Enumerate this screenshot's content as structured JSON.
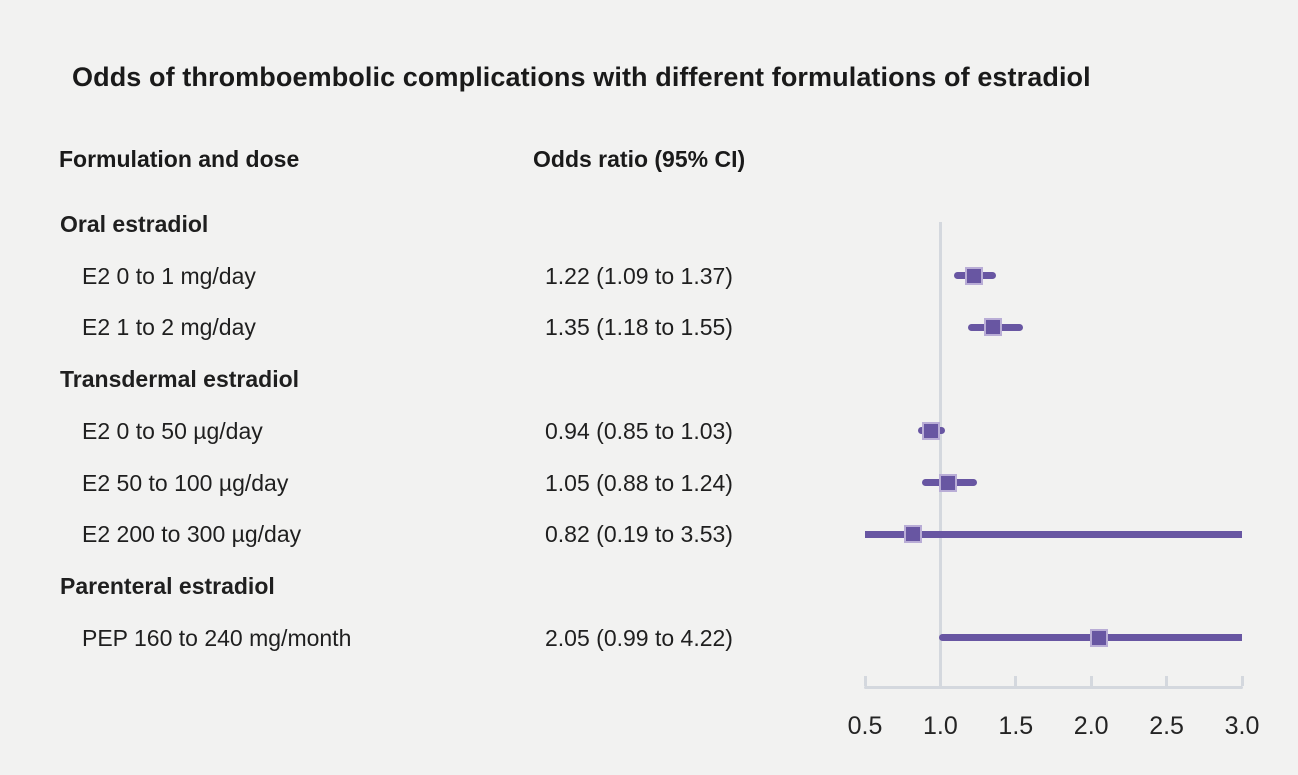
{
  "title": "Odds of thromboembolic complications with different formulations of estradiol",
  "columns": {
    "left": "Formulation and dose",
    "right": "Odds ratio (95% CI)"
  },
  "colors": {
    "background": "#f2f2f1",
    "text": "#1a1a1a",
    "marker": "#6856a2",
    "marker_outline": "#b9add6",
    "axis": "#d4d8de"
  },
  "chart_data": {
    "type": "forest",
    "title": "Odds of thromboembolic complications with different formulations of estradiol",
    "x_axis": {
      "min": 0.5,
      "max": 3.0,
      "reference_line": 1.0,
      "tick_labels": [
        "0.5",
        "1.0",
        "1.5",
        "2.0",
        "2.5",
        "3.0"
      ],
      "grid": false
    },
    "rows": [
      {
        "kind": "group",
        "label": "Oral estradiol"
      },
      {
        "kind": "item",
        "label": "E2 0 to 1 mg/day",
        "or_text": "1.22 (1.09 to 1.37)",
        "est": 1.22,
        "lo": 1.09,
        "hi": 1.37
      },
      {
        "kind": "item",
        "label": "E2 1 to 2 mg/day",
        "or_text": "1.35 (1.18 to 1.55)",
        "est": 1.35,
        "lo": 1.18,
        "hi": 1.55
      },
      {
        "kind": "group",
        "label": "Transdermal estradiol"
      },
      {
        "kind": "item",
        "label": "E2 0 to 50 µg/day",
        "or_text": "0.94 (0.85 to 1.03)",
        "est": 0.94,
        "lo": 0.85,
        "hi": 1.03
      },
      {
        "kind": "item",
        "label": "E2 50 to 100 µg/day",
        "or_text": "1.05 (0.88 to 1.24)",
        "est": 1.05,
        "lo": 0.88,
        "hi": 1.24
      },
      {
        "kind": "item",
        "label": "E2 200 to 300 µg/day",
        "or_text": "0.82 (0.19 to 3.53)",
        "est": 0.82,
        "lo": 0.19,
        "hi": 3.53
      },
      {
        "kind": "group",
        "label": "Parenteral estradiol"
      },
      {
        "kind": "item",
        "label": "PEP 160 to 240 mg/month",
        "or_text": "2.05 (0.99 to 4.22)",
        "est": 2.05,
        "lo": 0.99,
        "hi": 4.22
      }
    ]
  }
}
